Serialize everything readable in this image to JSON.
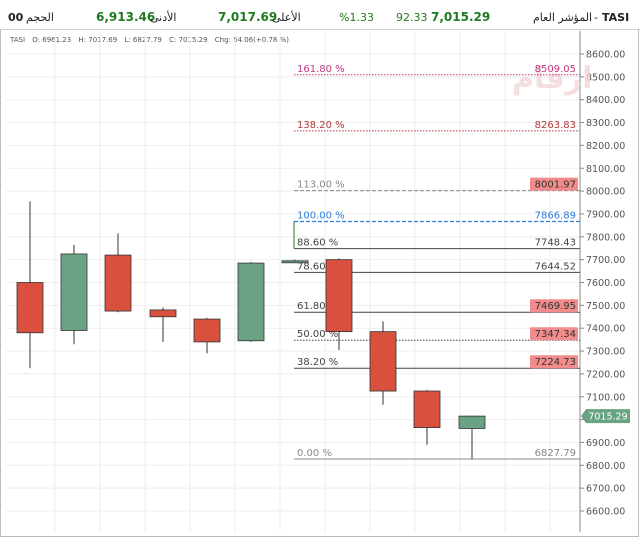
{
  "header": {
    "symbol": "TASI",
    "symbol_name": "المؤشر العام",
    "dash": "-",
    "last": "7,015.29",
    "change": "92.33",
    "change_pct": "%1.33",
    "high_label": "الأعلى",
    "high": "7,017.69",
    "low_label": "الأدنى",
    "low": "6,913.46",
    "volume_label": "الحجم",
    "volume": "00"
  },
  "ohlc_line": {
    "symbol": "TASI",
    "open": "O: 6961.23",
    "high": "H: 7017.69",
    "low": "L: 6827.79",
    "close": "C: 7015.29",
    "change": "Chg: 54.06(+0.78 %)"
  },
  "watermark": "ارقام",
  "colors": {
    "up": "#6aa383",
    "down": "#d9503f",
    "price_tag": "#6aa383",
    "fib_highlight": "#f28b8b",
    "fib_161": "#c0397e",
    "fib_138": "#b03a3a",
    "fib_113": "#888888",
    "fib_100": "#2f7fd8",
    "fib_default": "#444444"
  },
  "chart_data": {
    "type": "candlestick",
    "ylim": [
      6550,
      8700
    ],
    "yticks": [
      6600,
      6700,
      6800,
      6900,
      7000,
      7100,
      7200,
      7300,
      7400,
      7500,
      7600,
      7700,
      7800,
      7900,
      8000,
      8100,
      8200,
      8300,
      8400,
      8500,
      8600
    ],
    "ytick_labels": [
      "6600.00",
      "6700.00",
      "6800.00",
      "6900.00",
      "7000.00",
      "7100.00",
      "7200.00",
      "7300.00",
      "7400.00",
      "7500.00",
      "7600.00",
      "7700.00",
      "7800.00",
      "7900.00",
      "8000.00",
      "8100.00",
      "8200.00",
      "8300.00",
      "8400.00",
      "8500.00",
      "8600.00"
    ],
    "last_price": 7015.29,
    "last_price_label": "7015.29",
    "candles": [
      {
        "open": 7600,
        "high": 7955,
        "low": 7225,
        "close": 7380
      },
      {
        "open": 7390,
        "high": 7765,
        "low": 7330,
        "close": 7725
      },
      {
        "open": 7720,
        "high": 7815,
        "low": 7470,
        "close": 7475
      },
      {
        "open": 7480,
        "high": 7490,
        "low": 7340,
        "close": 7450
      },
      {
        "open": 7440,
        "high": 7445,
        "low": 7290,
        "close": 7340
      },
      {
        "open": 7345,
        "high": 7690,
        "low": 7340,
        "close": 7685
      },
      {
        "open": 7690,
        "high": 7700,
        "low": 7688,
        "close": 7695
      },
      {
        "open": 7700,
        "high": 7705,
        "low": 7305,
        "close": 7385
      },
      {
        "open": 7385,
        "high": 7430,
        "low": 7065,
        "close": 7125
      },
      {
        "open": 7125,
        "high": 7130,
        "low": 6890,
        "close": 6965
      },
      {
        "open": 6961.23,
        "high": 7017.69,
        "low": 6827.79,
        "close": 7015.29
      }
    ],
    "fib_levels": [
      {
        "pct": "161.80 %",
        "value": 8509.05,
        "label": "8509.05",
        "style": "fib_161",
        "dotted": true,
        "highlight": false
      },
      {
        "pct": "138.20 %",
        "value": 8263.83,
        "label": "8263.83",
        "style": "fib_138",
        "dotted": true,
        "highlight": false
      },
      {
        "pct": "113.00 %",
        "value": 8001.97,
        "label": "8001.97",
        "style": "fib_113",
        "dashed": true,
        "highlight": true
      },
      {
        "pct": "100.00 %",
        "value": 7866.89,
        "label": "7866.89",
        "style": "fib_100",
        "dashed": true,
        "highlight": false
      },
      {
        "pct": "88.60 %",
        "value": 7748.43,
        "label": "7748.43",
        "style": "fib_default",
        "highlight": false
      },
      {
        "pct": "78.60 %",
        "value": 7644.52,
        "label": "7644.52",
        "style": "fib_default",
        "highlight": false
      },
      {
        "pct": "61.80 %",
        "value": 7469.95,
        "label": "7469.95",
        "style": "fib_default",
        "highlight": true
      },
      {
        "pct": "50.00 %",
        "value": 7347.34,
        "label": "7347.34",
        "style": "fib_default",
        "dotted": true,
        "highlight": true
      },
      {
        "pct": "38.20 %",
        "value": 7224.73,
        "label": "7224.73",
        "style": "fib_default",
        "highlight": true
      },
      {
        "pct": "0.00 %",
        "value": 6827.79,
        "label": "6827.79",
        "style": "fib_113",
        "highlight": false
      }
    ]
  }
}
